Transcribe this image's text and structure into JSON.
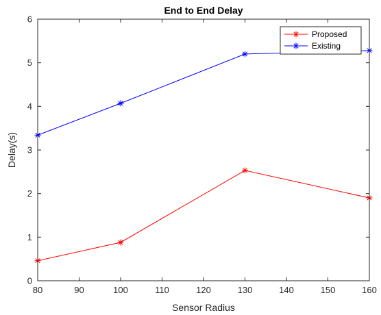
{
  "chart_data": {
    "type": "line",
    "title": "End to End Delay",
    "xlabel": "Sensor Radius",
    "ylabel": "Delay(s)",
    "x": [
      80,
      100,
      130,
      160
    ],
    "xlim": [
      80,
      160
    ],
    "ylim": [
      0,
      6
    ],
    "xticks": [
      80,
      90,
      100,
      110,
      120,
      130,
      140,
      150,
      160
    ],
    "yticks": [
      0,
      1,
      2,
      3,
      4,
      5,
      6
    ],
    "grid": false,
    "legend_position": "top-right",
    "series": [
      {
        "name": "Proposed",
        "values": [
          0.46,
          0.88,
          2.53,
          1.9
        ],
        "color": "#ff0000",
        "marker": "*"
      },
      {
        "name": "Existing",
        "values": [
          3.34,
          4.07,
          5.2,
          5.28
        ],
        "color": "#0000ff",
        "marker": "*"
      }
    ]
  }
}
